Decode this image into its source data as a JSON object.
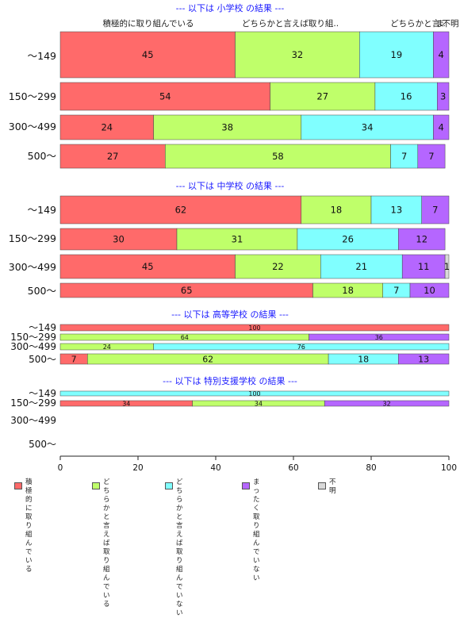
{
  "chart_data": {
    "type": "bar",
    "orientation": "horizontal",
    "stacked": true,
    "xlim": [
      0,
      100
    ],
    "x_ticks": [
      "0",
      "20",
      "40",
      "60",
      "80",
      "100"
    ],
    "column_labels": [
      "積極的に取り組んでいる",
      "どちらかと言えば取り組..",
      "どちらかと言..",
      "ま",
      "不明"
    ],
    "legend": [
      {
        "label": "積極的に\n取り組んでいる",
        "color": "#FF6A6A"
      },
      {
        "label": "どちらかと言えば\n取り組んでいる",
        "color": "#BFFF6A"
      },
      {
        "label": "どちらかと言えば\n取り組んでいない",
        "color": "#80FFFF"
      },
      {
        "label": "まったく\n取り組んでいない",
        "color": "#B566FF"
      },
      {
        "label": "不明",
        "color": "#D9D9D9"
      }
    ],
    "groups": [
      {
        "title": "--- 以下は 小学校 の結果 ---",
        "categories": [
          "〜149",
          "150〜299",
          "300〜499",
          "500〜"
        ],
        "values": [
          [
            45,
            32,
            19,
            4,
            0
          ],
          [
            54,
            27,
            16,
            3,
            0
          ],
          [
            24,
            38,
            34,
            4,
            0
          ],
          [
            27,
            58,
            7,
            7,
            0
          ]
        ]
      },
      {
        "title": "--- 以下は 中学校 の結果 ---",
        "categories": [
          "〜149",
          "150〜299",
          "300〜499",
          "500〜"
        ],
        "values": [
          [
            62,
            18,
            13,
            7,
            0
          ],
          [
            30,
            31,
            26,
            12,
            0
          ],
          [
            45,
            22,
            21,
            11,
            1
          ],
          [
            65,
            18,
            7,
            10,
            0
          ]
        ]
      },
      {
        "title": "--- 以下は 高等学校 の結果 ---",
        "categories": [
          "〜149",
          "150〜299",
          "300〜499",
          "500〜"
        ],
        "values": [
          [
            100,
            0,
            0,
            0,
            0
          ],
          [
            0,
            64,
            0,
            36,
            0
          ],
          [
            0,
            24,
            76,
            0,
            0
          ],
          [
            7,
            62,
            18,
            13,
            0
          ]
        ]
      },
      {
        "title": "--- 以下は 特別支援学校 の結果 ---",
        "categories": [
          "〜149",
          "150〜299",
          "300〜499",
          "500〜"
        ],
        "values": [
          [
            0,
            0,
            100,
            0,
            0
          ],
          [
            34,
            34,
            0,
            32,
            0
          ],
          [],
          []
        ]
      }
    ]
  }
}
